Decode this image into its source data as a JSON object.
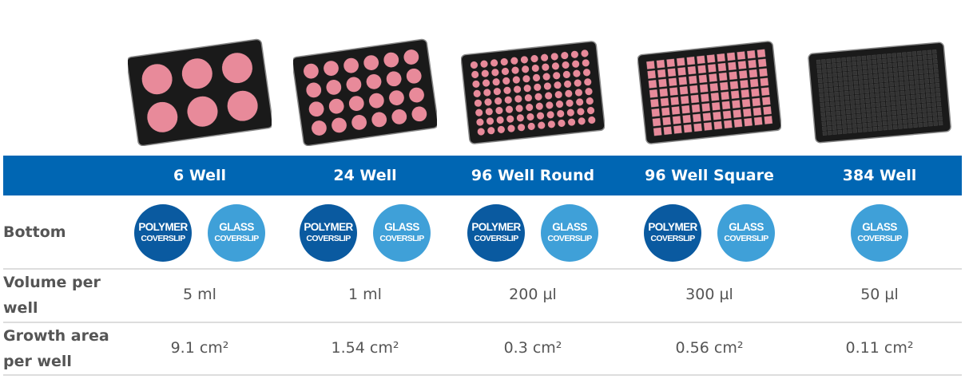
{
  "colors": {
    "header": "#0066b3",
    "polymer": "#0a5aa0",
    "glass": "#3fa0d8",
    "well": "#e88a9a",
    "plate": "#1a1a1a"
  },
  "columns": [
    {
      "name": "6 Well",
      "bottom": [
        {
          "type": "polymer",
          "l1": "POLYMER",
          "l2": "COVERSLIP"
        },
        {
          "type": "glass",
          "l1": "GLASS",
          "l2": "COVERSLIP"
        }
      ],
      "volume": "5 ml",
      "area": "9.1 cm²"
    },
    {
      "name": "24 Well",
      "bottom": [
        {
          "type": "polymer",
          "l1": "POLYMER",
          "l2": "COVERSLIP"
        },
        {
          "type": "glass",
          "l1": "GLASS",
          "l2": "COVERSLIP"
        }
      ],
      "volume": "1 ml",
      "area": "1.54 cm²"
    },
    {
      "name": "96 Well Round",
      "bottom": [
        {
          "type": "polymer",
          "l1": "POLYMER",
          "l2": "COVERSLIP"
        },
        {
          "type": "glass",
          "l1": "GLASS",
          "l2": "COVERSLIP"
        }
      ],
      "volume": "200 µl",
      "area": "0.3 cm²"
    },
    {
      "name": "96 Well Square",
      "bottom": [
        {
          "type": "polymer",
          "l1": "POLYMER",
          "l2": "COVERSLIP"
        },
        {
          "type": "glass",
          "l1": "GLASS",
          "l2": "COVERSLIP"
        }
      ],
      "volume": "300 µl",
      "area": "0.56 cm²"
    },
    {
      "name": "384 Well",
      "bottom": [
        {
          "type": "glass",
          "l1": "GLASS",
          "l2": "COVERSLIP"
        }
      ],
      "volume": "50 µl",
      "area": "0.11 cm²"
    }
  ],
  "rows": {
    "bottom": "Bottom",
    "volume": "Volume per well",
    "area": "Growth area per well"
  }
}
